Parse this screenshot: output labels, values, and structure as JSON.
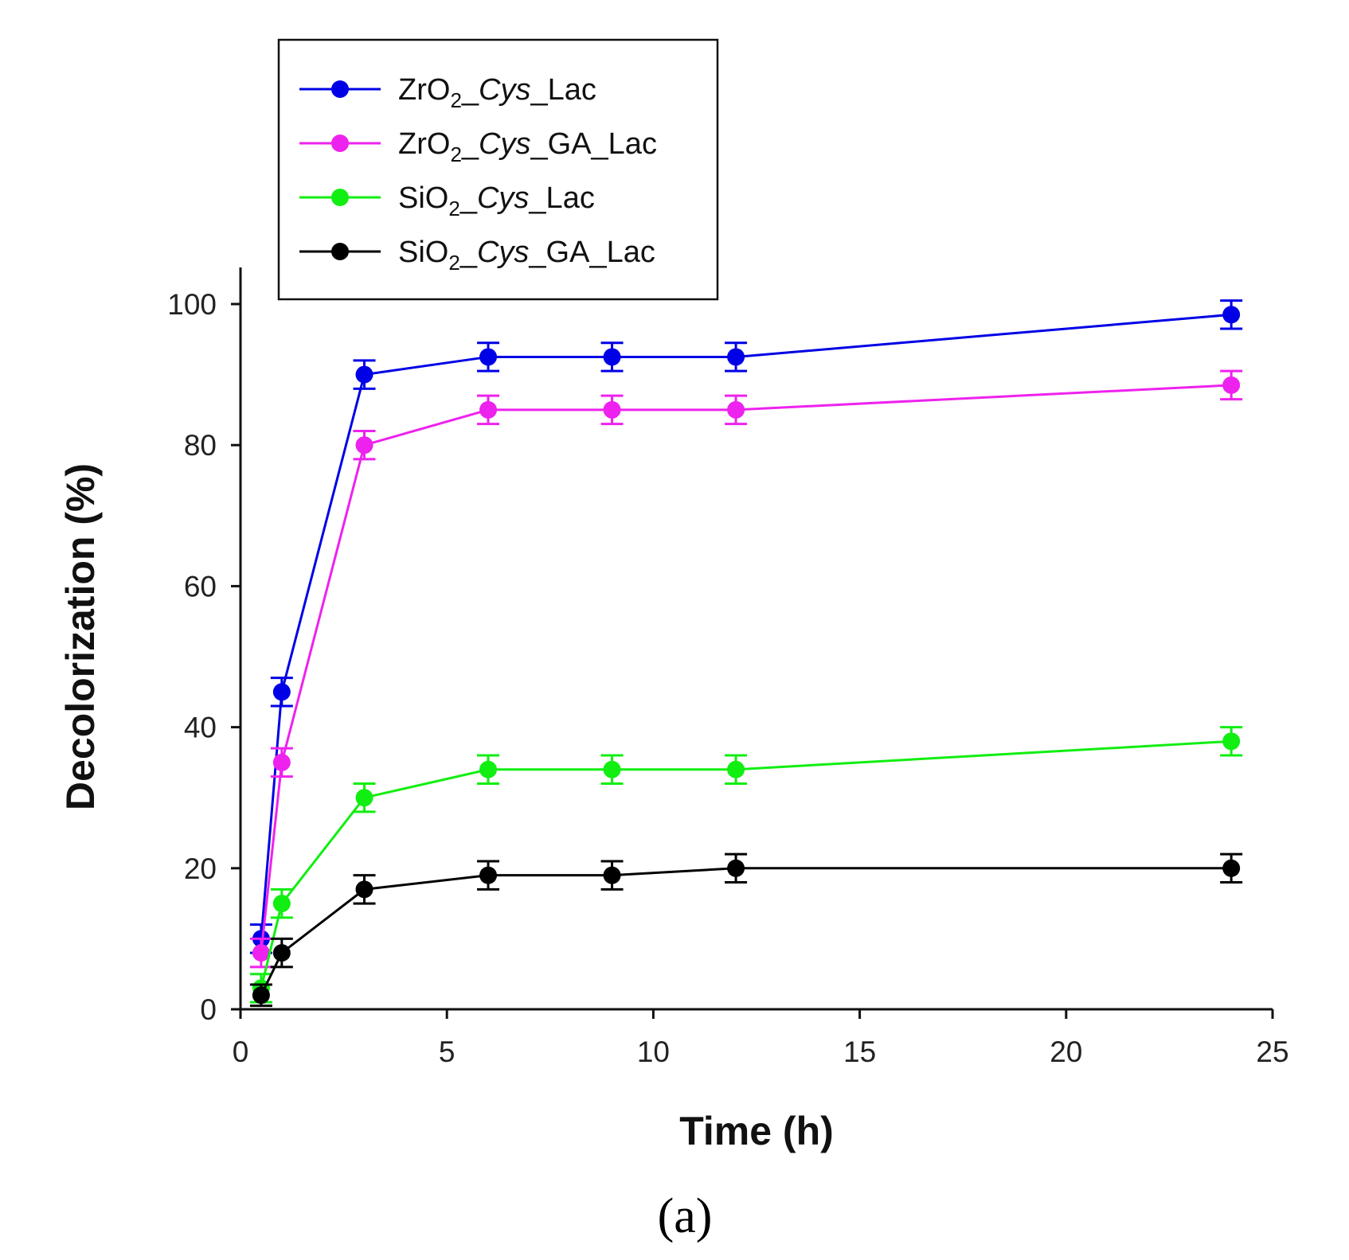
{
  "chart_data": {
    "type": "line",
    "title": "",
    "xlabel": "Time (h)",
    "ylabel": "Decolorization (%)",
    "xlim": [
      0,
      25
    ],
    "ylim": [
      0,
      105
    ],
    "xticks": [
      "0",
      "5",
      "10",
      "15",
      "20",
      "25"
    ],
    "yticks": [
      "0",
      "20",
      "40",
      "60",
      "80",
      "100"
    ],
    "grid": false,
    "legend_position": "top-left, outside above plot",
    "caption": "(a)",
    "x": [
      0.5,
      1,
      3,
      6,
      9,
      12,
      24
    ],
    "series": [
      {
        "name": "ZrO2_Cys_Lac",
        "parts": [
          "ZrO",
          "2",
          "_",
          "Cys",
          "_Lac"
        ],
        "color": "#0000e6",
        "values": [
          10,
          45,
          90,
          92.5,
          92.5,
          92.5,
          98.5
        ],
        "errors": [
          2,
          2,
          2,
          2,
          2,
          2,
          2
        ]
      },
      {
        "name": "ZrO2_Cys_GA_Lac",
        "parts": [
          "ZrO",
          "2",
          "_",
          "Cys",
          "_GA_Lac"
        ],
        "color": "#ee22ee",
        "values": [
          8,
          35,
          80,
          85,
          85,
          85,
          88.5
        ],
        "errors": [
          2,
          2,
          2,
          2,
          2,
          2,
          2
        ]
      },
      {
        "name": "SiO2_Cys_Lac",
        "parts": [
          "SiO",
          "2",
          "_",
          "Cys",
          "_Lac"
        ],
        "color": "#11ee11",
        "values": [
          3,
          15,
          30,
          34,
          34,
          34,
          38
        ],
        "errors": [
          2,
          2,
          2,
          2,
          2,
          2,
          2
        ]
      },
      {
        "name": "SiO2_Cys_GA_Lac",
        "parts": [
          "SiO",
          "2",
          "_",
          "Cys",
          "_GA_Lac"
        ],
        "color": "#000000",
        "values": [
          2,
          8,
          17,
          19,
          19,
          20,
          20
        ],
        "errors": [
          1.5,
          2,
          2,
          2,
          2,
          2,
          2
        ]
      }
    ]
  }
}
